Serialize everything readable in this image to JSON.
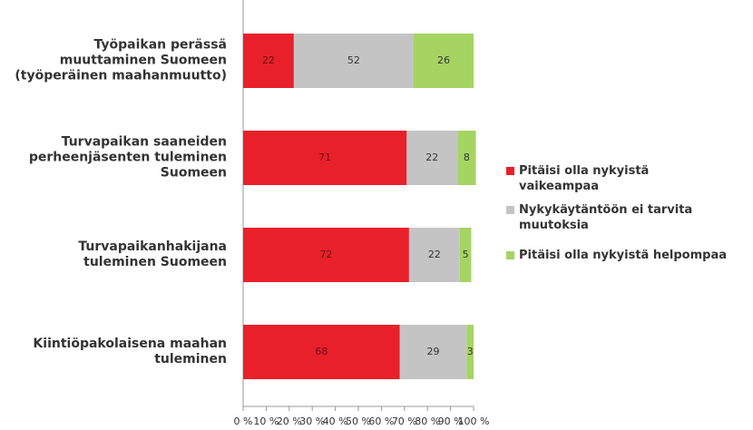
{
  "chart_data": {
    "type": "stacked-barh",
    "categories": [
      "Työpaikan perässä muuttaminen Suomeen (työperäinen maahanmuutto)",
      "Turvapaikan saaneiden perheenjäsenten tuleminen Suomeen",
      "Turvapaikanhakijana tuleminen Suomeen",
      "Kiintiöpakolaisena maahan tuleminen"
    ],
    "series": [
      {
        "name": "Pitäisi olla nykyistä vaikeampaa",
        "color": "#e8202a",
        "values": [
          22,
          71,
          72,
          68
        ]
      },
      {
        "name": "Nykykäytäntöön ei tarvita muutoksia",
        "color": "#c4c4c4",
        "values": [
          52,
          22,
          22,
          29
        ]
      },
      {
        "name": "Pitäisi olla nykyistä helpompaa",
        "color": "#a6d462",
        "values": [
          26,
          8,
          5,
          3
        ]
      }
    ],
    "xlim": [
      0,
      100
    ],
    "xticks": [
      {
        "value": 0,
        "label": "0 %"
      },
      {
        "value": 10,
        "label": "10 %"
      },
      {
        "value": 20,
        "label": "20 %"
      },
      {
        "value": 30,
        "label": "30 %"
      },
      {
        "value": 40,
        "label": "40 %"
      },
      {
        "value": 50,
        "label": "50 %"
      },
      {
        "value": 60,
        "label": "60 %"
      },
      {
        "value": 70,
        "label": "70 %"
      },
      {
        "value": 80,
        "label": "80 %"
      },
      {
        "value": 90,
        "label": "90 %"
      },
      {
        "value": 100,
        "label": "100 %"
      }
    ],
    "legend": "right"
  }
}
